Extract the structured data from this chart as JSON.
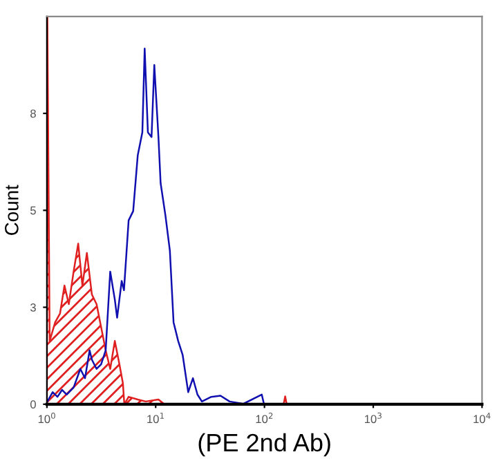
{
  "chart_data": {
    "type": "line",
    "xlabel": "(PE 2nd Ab)",
    "ylabel": "Count",
    "log": "x",
    "xlim": [
      1,
      10000
    ],
    "ylim": [
      0,
      10
    ],
    "xticks": [
      {
        "value": 1,
        "label": "10$^{0}$"
      },
      {
        "value": 10,
        "label": "10$^{1}$"
      },
      {
        "value": 100,
        "label": "10$^{2}$"
      },
      {
        "value": 1000,
        "label": "10$^{3}$"
      },
      {
        "value": 10000,
        "label": "10$^{4}$"
      }
    ],
    "yticks": [
      0,
      {
        "value": 2.5,
        "label": "3"
      },
      5,
      {
        "value": 7.5,
        "label": "8"
      }
    ],
    "grid": false,
    "legend": false,
    "series": [
      {
        "type": "area",
        "color": "#e02020",
        "x": [
          1.0,
          1.01,
          1.06,
          1.19,
          1.32,
          1.45,
          1.59,
          1.76,
          1.94,
          2.12,
          2.33,
          2.59,
          2.86,
          3.15,
          3.47,
          3.82,
          4.21,
          4.64,
          4.99,
          5.15,
          5.64,
          6.84,
          8.1,
          10.6,
          12,
          150,
          155,
          160
        ],
        "values": [
          0,
          10,
          1.63,
          2.11,
          2.34,
          3.06,
          2.58,
          3.42,
          4.14,
          3.06,
          3.9,
          2.83,
          2.58,
          1.99,
          1.39,
          0.91,
          1.63,
          1.03,
          0.55,
          0,
          0.19,
          0.12,
          0.07,
          0.12,
          0,
          0,
          0.2,
          0
        ]
      },
      {
        "color": "#1010b0",
        "x": [
          1.01,
          1.13,
          1.25,
          1.38,
          1.52,
          1.76,
          2.03,
          2.24,
          2.47,
          2.59,
          2.86,
          3.15,
          3.47,
          3.82,
          4.21,
          4.42,
          4.87,
          5.11,
          5.64,
          6.21,
          6.84,
          7.54,
          7.92,
          8.48,
          9.16,
          9.71,
          10.6,
          11.1,
          12.3,
          13.5,
          14.6,
          16.1,
          17.7,
          19.9,
          22.0,
          24.2,
          26.6,
          32.4,
          39.4,
          47.8,
          64,
          94.4,
          99
        ],
        "values": [
          0.07,
          0.31,
          0.19,
          0.37,
          0.25,
          0.43,
          0.91,
          0.67,
          1.39,
          1.15,
          0.91,
          1.03,
          1.39,
          3.42,
          2.7,
          2.23,
          3.18,
          2.94,
          4.74,
          4.98,
          6.42,
          7.01,
          9.17,
          7.01,
          6.89,
          8.75,
          6.89,
          5.7,
          4.86,
          3.96,
          2.11,
          1.63,
          1.27,
          0.31,
          0.67,
          0.25,
          0.07,
          0.19,
          0.22,
          0.07,
          0.01,
          0.25,
          0
        ]
      }
    ]
  }
}
